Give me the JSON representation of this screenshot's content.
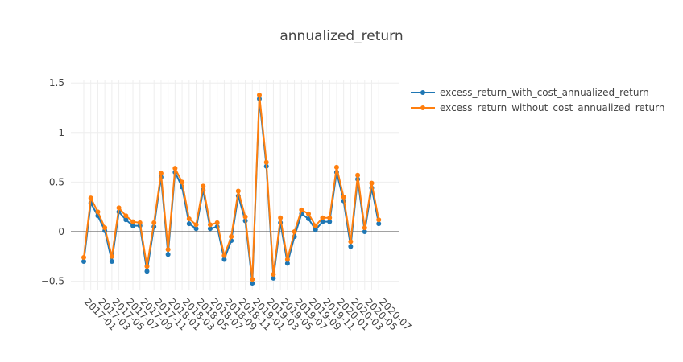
{
  "chart_data": {
    "type": "line",
    "title": "annualized_return",
    "xlabel": "",
    "ylabel": "",
    "x": [
      "2017-01",
      "2017-02",
      "2017-03",
      "2017-04",
      "2017-05",
      "2017-06",
      "2017-07",
      "2017-08",
      "2017-09",
      "2017-10",
      "2017-11",
      "2017-12",
      "2018-01",
      "2018-02",
      "2018-03",
      "2018-04",
      "2018-05",
      "2018-06",
      "2018-07",
      "2018-08",
      "2018-09",
      "2018-10",
      "2018-11",
      "2018-12",
      "2019-01",
      "2019-02",
      "2019-03",
      "2019-04",
      "2019-05",
      "2019-06",
      "2019-07",
      "2019-08",
      "2019-09",
      "2019-10",
      "2019-11",
      "2019-12",
      "2020-01",
      "2020-02",
      "2020-03",
      "2020-04",
      "2020-05",
      "2020-06",
      "2020-07"
    ],
    "x_tick_labels": [
      "2017-01",
      "2017-03",
      "2017-05",
      "2017-07",
      "2017-09",
      "2017-11",
      "2018-01",
      "2018-03",
      "2018-05",
      "2018-07",
      "2018-09",
      "2018-11",
      "2019-01",
      "2019-03",
      "2019-05",
      "2019-07",
      "2019-09",
      "2019-11",
      "2020-01",
      "2020-03",
      "2020-05",
      "2020-07"
    ],
    "ylim": [
      -0.6,
      1.55
    ],
    "y_ticks": [
      -0.5,
      0,
      0.5,
      1,
      1.5
    ],
    "y_tick_labels": [
      "−0.5",
      "0",
      "0.5",
      "1",
      "1.5"
    ],
    "grid": true,
    "legend_position": "top-right",
    "series": [
      {
        "name": "excess_return_with_cost_annualized_return",
        "color": "#1f77b4",
        "values": [
          -0.3,
          0.29,
          0.16,
          0.01,
          -0.3,
          0.2,
          0.12,
          0.06,
          0.06,
          -0.4,
          0.05,
          0.55,
          -0.23,
          0.6,
          0.45,
          0.08,
          0.03,
          0.42,
          0.03,
          0.05,
          -0.28,
          -0.09,
          0.36,
          0.11,
          -0.52,
          1.34,
          0.66,
          -0.47,
          0.09,
          -0.32,
          -0.05,
          0.18,
          0.13,
          0.02,
          0.1,
          0.1,
          0.6,
          0.31,
          -0.15,
          0.53,
          0.0,
          0.44,
          0.08
        ]
      },
      {
        "name": "excess_return_without_cost_annualized_return",
        "color": "#ff7f0e",
        "values": [
          -0.26,
          0.34,
          0.2,
          0.04,
          -0.25,
          0.24,
          0.16,
          0.1,
          0.09,
          -0.35,
          0.09,
          0.59,
          -0.18,
          0.64,
          0.5,
          0.13,
          0.07,
          0.46,
          0.07,
          0.09,
          -0.24,
          -0.05,
          0.41,
          0.15,
          -0.48,
          1.38,
          0.7,
          -0.43,
          0.14,
          -0.28,
          0.0,
          0.22,
          0.18,
          0.06,
          0.14,
          0.14,
          0.65,
          0.35,
          -0.1,
          0.57,
          0.04,
          0.49,
          0.12
        ]
      }
    ]
  }
}
